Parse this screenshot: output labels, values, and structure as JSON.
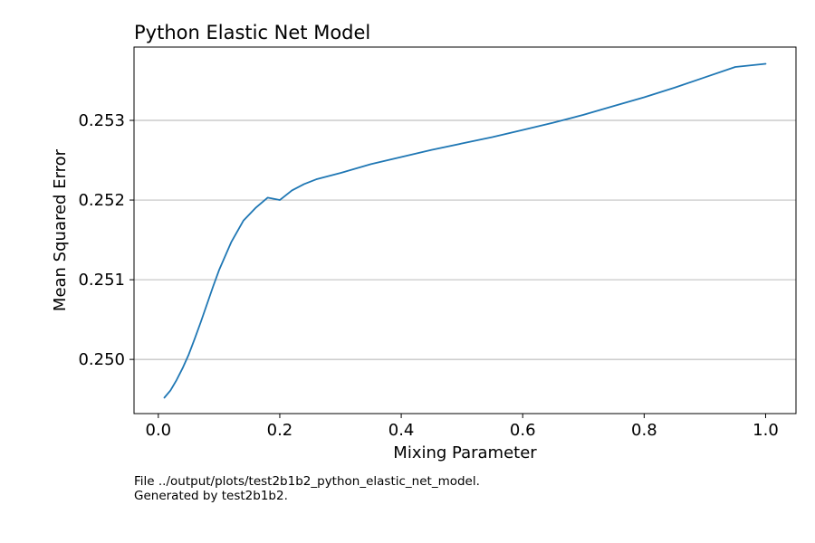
{
  "chart_data": {
    "type": "line",
    "title": "Python Elastic Net Model",
    "xlabel": "Mixing Parameter",
    "ylabel": "Mean Squared Error",
    "xlim": [
      -0.04,
      1.05
    ],
    "ylim": [
      0.24932,
      0.25392
    ],
    "x_ticks": [
      0.0,
      0.2,
      0.4,
      0.6,
      0.8,
      1.0
    ],
    "x_tick_labels": [
      "0.0",
      "0.2",
      "0.4",
      "0.6",
      "0.8",
      "1.0"
    ],
    "y_ticks": [
      0.25,
      0.251,
      0.252,
      0.253
    ],
    "y_tick_labels": [
      "0.250",
      "0.251",
      "0.252",
      "0.253"
    ],
    "grid": "y",
    "series": [
      {
        "color": "#1f77b4",
        "x": [
          0.01,
          0.02,
          0.03,
          0.04,
          0.05,
          0.06,
          0.07,
          0.08,
          0.09,
          0.1,
          0.12,
          0.14,
          0.16,
          0.18,
          0.2,
          0.22,
          0.24,
          0.26,
          0.28,
          0.3,
          0.35,
          0.4,
          0.45,
          0.5,
          0.55,
          0.6,
          0.65,
          0.7,
          0.75,
          0.8,
          0.85,
          0.9,
          0.95,
          1.0
        ],
        "y": [
          0.24952,
          0.24961,
          0.24974,
          0.24989,
          0.25006,
          0.25026,
          0.25047,
          0.25069,
          0.25091,
          0.25112,
          0.25147,
          0.25174,
          0.2519,
          0.25203,
          0.252,
          0.25212,
          0.2522,
          0.25226,
          0.2523,
          0.25234,
          0.25245,
          0.25254,
          0.25263,
          0.25271,
          0.25279,
          0.25288,
          0.25297,
          0.25307,
          0.25318,
          0.25329,
          0.25341,
          0.25354,
          0.25367,
          0.25371
        ]
      }
    ]
  },
  "caption": {
    "line1": "File ../output/plots/test2b1b2_python_elastic_net_model.",
    "line2": "Generated by test2b1b2."
  }
}
